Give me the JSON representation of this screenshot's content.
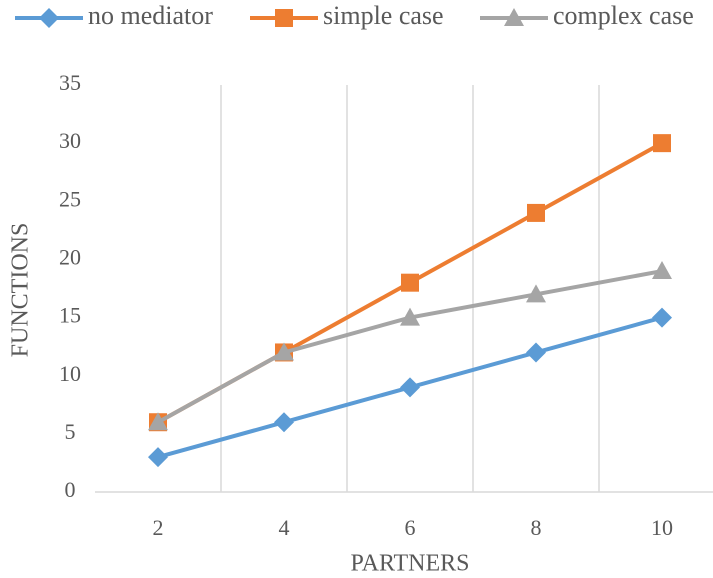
{
  "chart_data": {
    "type": "line",
    "x_label": "PARTNERS",
    "y_label": "FUNCTIONS",
    "categories": [
      "2",
      "4",
      "6",
      "8",
      "10"
    ],
    "series": [
      {
        "name": "no mediator",
        "color": "#5b9bd5",
        "marker": "diamond",
        "values": [
          3,
          6,
          9,
          12,
          15
        ]
      },
      {
        "name": "simple case",
        "color": "#ed7d31",
        "marker": "square",
        "values": [
          6,
          12,
          18,
          24,
          30
        ]
      },
      {
        "name": "complex case",
        "color": "#a5a5a5",
        "marker": "triangle",
        "values": [
          6,
          12,
          15,
          17,
          19
        ]
      }
    ],
    "ylim": [
      0,
      35
    ],
    "yticks": [
      0,
      5,
      10,
      15,
      20,
      25,
      30,
      35
    ],
    "grid": "vertical",
    "legend": "top"
  }
}
